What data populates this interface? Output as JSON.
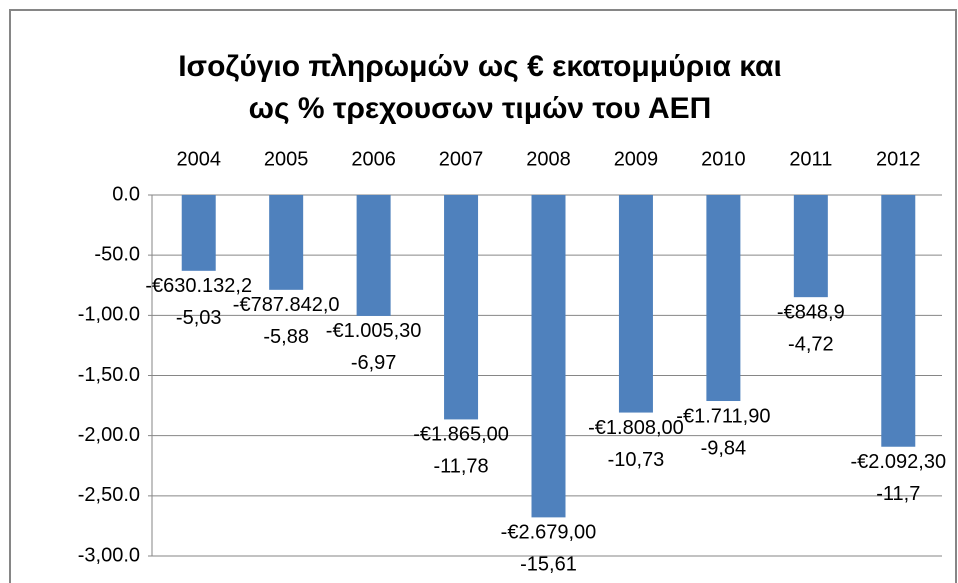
{
  "chart_data": {
    "type": "bar",
    "title": "Ισοζύγιο πληρωμών ως € εκατομμύρια και",
    "subtitle": "ως % τρεχουσων τιμών του ΑΕΠ",
    "categories": [
      "2004",
      "2005",
      "2006",
      "2007",
      "2008",
      "2009",
      "2010",
      "2011",
      "2012"
    ],
    "values": [
      -63,
      -78.8,
      -100.5,
      -186.5,
      -267.9,
      -180.8,
      -171.2,
      -84.9,
      -209.2
    ],
    "value_labels": [
      "-€630.132,2",
      "-€787.842,0",
      "-€1.005,30",
      "-€1.865,00",
      "-€2.679,00",
      "-€1.808,00",
      "-€1.711,90",
      "-€848,9",
      "-€2.092,30"
    ],
    "percent_labels": [
      "-5,03",
      "-5,88",
      "-6,97",
      "-11,78",
      "-15,61",
      "-10,73",
      "-9,84",
      "-4,72",
      "-11,7"
    ],
    "color": "#4f81bd",
    "ylim": [
      -300,
      0
    ],
    "yticks": [
      {
        "value": 0,
        "label": "0.0"
      },
      {
        "value": -50,
        "label": "-50.0"
      },
      {
        "value": -100,
        "label": "-1,00.0"
      },
      {
        "value": -150,
        "label": "-1,50.0"
      },
      {
        "value": -200,
        "label": "-2,00.0"
      },
      {
        "value": -250,
        "label": "-2,50.0"
      },
      {
        "value": -300,
        "label": "-3,00.0"
      }
    ],
    "grid": true
  }
}
